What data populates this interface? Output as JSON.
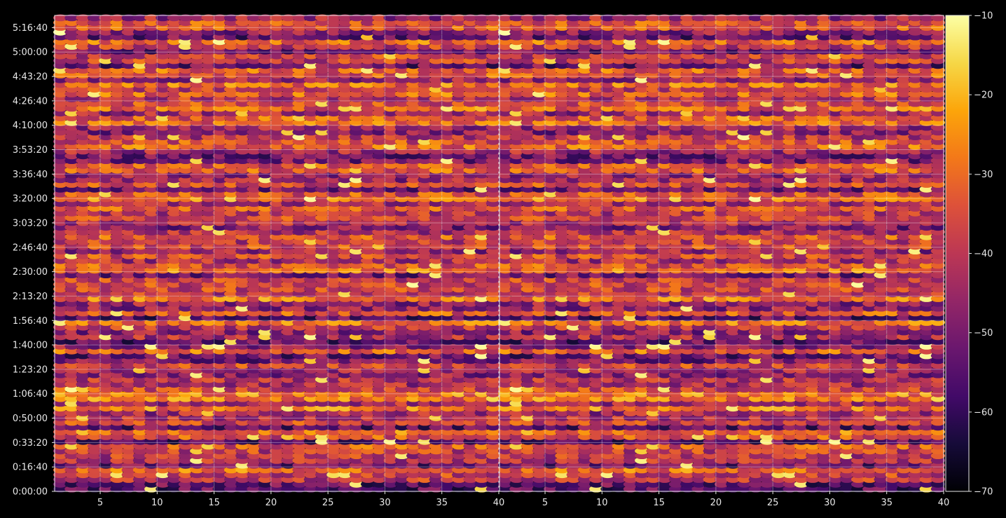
{
  "chart_data": [
    {
      "type": "heatmap",
      "panel": "left",
      "x_ticks": [
        "5",
        "10",
        "15",
        "20",
        "25",
        "30",
        "35",
        "40"
      ],
      "x_tick_values": [
        5,
        10,
        15,
        20,
        25,
        30,
        35,
        40
      ],
      "y_ticks": [
        "0:00:00",
        "0:16:40",
        "0:33:20",
        "0:50:00",
        "1:06:40",
        "1:23:20",
        "1:40:00",
        "1:56:40",
        "2:13:20",
        "2:30:00",
        "2:46:40",
        "3:03:20",
        "3:20:00",
        "3:36:40",
        "3:53:20",
        "4:10:00",
        "4:26:40",
        "4:43:20",
        "5:00:00",
        "5:16:40"
      ],
      "y_tick_seconds": [
        0,
        1000,
        2000,
        3000,
        4000,
        5000,
        6000,
        7000,
        8000,
        9000,
        10000,
        11000,
        12000,
        13000,
        14000,
        15000,
        16000,
        17000,
        18000,
        19000
      ],
      "xlim": [
        1,
        40
      ],
      "ylim_seconds": [
        0,
        19500
      ],
      "grid": true,
      "colormap": "inferno"
    },
    {
      "type": "heatmap",
      "panel": "right",
      "x_ticks": [
        "5",
        "10",
        "15",
        "20",
        "25",
        "30",
        "35",
        "40"
      ],
      "x_tick_values": [
        5,
        10,
        15,
        20,
        25,
        30,
        35,
        40
      ],
      "xlim": [
        1,
        40
      ],
      "ylim_seconds": [
        0,
        19500
      ],
      "grid": true,
      "colormap": "inferno"
    }
  ],
  "colorbar": {
    "ticks": [
      "−10",
      "−20",
      "−30",
      "−40",
      "−50",
      "−60",
      "−70"
    ],
    "tick_values": [
      -10,
      -20,
      -30,
      -40,
      -50,
      -60,
      -70
    ],
    "range": [
      -70,
      -10
    ],
    "colormap": "inferno"
  }
}
